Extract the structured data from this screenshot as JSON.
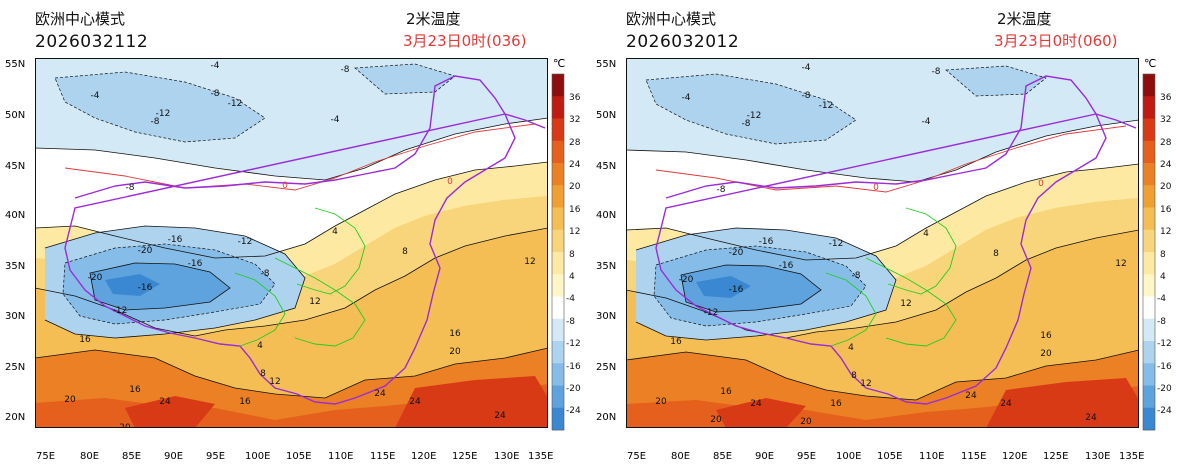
{
  "colors": {
    "scale": [
      "#3b88d2",
      "#5ea2de",
      "#86bde8",
      "#aed3ef",
      "#d4e9f6",
      "#ffffff",
      "#fff6c6",
      "#fde9a2",
      "#f8d57b",
      "#f5be55",
      "#f0a033",
      "#eb8124",
      "#e4601c",
      "#d83a16",
      "#bf1b12",
      "#8e0e0e"
    ],
    "admin_purple": "#9b2bd9",
    "admin_green": "#22cc22",
    "contour_black": "#111111",
    "freezing_red": "#e23a3a",
    "axis_brown": "#8a5a2b"
  },
  "colorbar": {
    "unit": "℃",
    "labels": [
      "36",
      "32",
      "28",
      "24",
      "20",
      "16",
      "12",
      "8",
      "4",
      "-4",
      "-8",
      "-12",
      "-16",
      "-20",
      "-24"
    ]
  },
  "axes": {
    "lat_labels": [
      "55N",
      "50N",
      "45N",
      "40N",
      "35N",
      "30N",
      "25N",
      "20N"
    ],
    "lon_labels": [
      "75E",
      "80E",
      "85E",
      "90E",
      "95E",
      "100E",
      "105E",
      "110E",
      "115E",
      "120E",
      "125E",
      "130E",
      "135E"
    ]
  },
  "panels": [
    {
      "model": "欧洲中心模式",
      "run": "2026032112",
      "variable": "2米温度",
      "valid": "3月23日0时(036)",
      "contour_labels": [
        "-4",
        "-8",
        "-8",
        "-8",
        "-12",
        "-12",
        "-16",
        "-20",
        "-20",
        "-16",
        "-12",
        "-16",
        "-12",
        "-8",
        "-8",
        "-4",
        "-4",
        "0",
        "0",
        "4",
        "4",
        "8",
        "8",
        "12",
        "12",
        "12",
        "16",
        "16",
        "16",
        "16",
        "20",
        "20",
        "20",
        "20",
        "24",
        "24",
        "24",
        "24"
      ]
    },
    {
      "model": "欧洲中心模式",
      "run": "2026032012",
      "variable": "2米温度",
      "valid": "3月23日0时(060)",
      "contour_labels": [
        "-4",
        "-8",
        "-8",
        "-8",
        "-12",
        "-12",
        "-16",
        "-20",
        "-20",
        "-16",
        "-12",
        "-16",
        "-12",
        "-8",
        "-8",
        "-4",
        "-4",
        "0",
        "0",
        "4",
        "4",
        "8",
        "8",
        "12",
        "12",
        "12",
        "16",
        "16",
        "16",
        "16",
        "20",
        "20",
        "20",
        "20",
        "24",
        "24",
        "24",
        "24"
      ]
    }
  ]
}
